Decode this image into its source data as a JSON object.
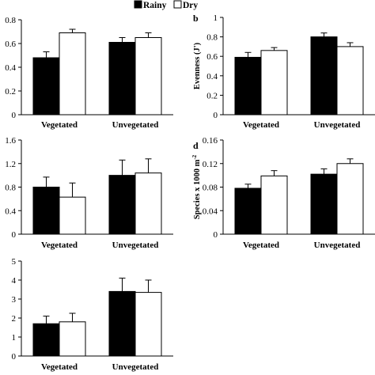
{
  "legend": {
    "placement": "top-center",
    "entries": [
      {
        "name": "Rainy",
        "color": "#000000"
      },
      {
        "name": "Dry",
        "color": "#ffffff"
      }
    ]
  },
  "chart_data": [
    {
      "type": "bar",
      "panel_label": "",
      "categories": [
        "Vegetated",
        "Unvegetated"
      ],
      "series": [
        {
          "name": "Rainy",
          "values": [
            0.48,
            0.61
          ],
          "errors": [
            0.05,
            0.04
          ]
        },
        {
          "name": "Dry",
          "values": [
            0.69,
            0.65
          ],
          "errors": [
            0.03,
            0.04
          ]
        }
      ],
      "ylabel": "",
      "ylim": [
        0,
        0.8
      ],
      "yticks": [
        "0",
        "0.2",
        "0.4",
        "0.6",
        "0.8"
      ]
    },
    {
      "type": "bar",
      "panel_label": "b",
      "categories": [
        "Vegetated",
        "Unvegetated"
      ],
      "series": [
        {
          "name": "Rainy",
          "values": [
            0.59,
            0.8
          ],
          "errors": [
            0.05,
            0.04
          ]
        },
        {
          "name": "Dry",
          "values": [
            0.66,
            0.7
          ],
          "errors": [
            0.03,
            0.04
          ]
        }
      ],
      "ylabel": "Evenness (J')",
      "ylim": [
        0,
        1
      ],
      "yticks": [
        "0",
        "0.2",
        "0.4",
        "0.6",
        "0.8",
        "1"
      ]
    },
    {
      "type": "bar",
      "panel_label": "",
      "categories": [
        "Vegetated",
        "Unvegetated"
      ],
      "series": [
        {
          "name": "Rainy",
          "values": [
            0.8,
            1.0
          ],
          "errors": [
            0.17,
            0.26
          ]
        },
        {
          "name": "Dry",
          "values": [
            0.63,
            1.04
          ],
          "errors": [
            0.24,
            0.24
          ]
        }
      ],
      "ylabel": "",
      "ylim": [
        0,
        1.6
      ],
      "yticks": [
        "0",
        "0.4",
        "0.8",
        "1.2",
        "1.6"
      ]
    },
    {
      "type": "bar",
      "panel_label": "d",
      "categories": [
        "Vegetated",
        "Unvegetated"
      ],
      "series": [
        {
          "name": "Rainy",
          "values": [
            0.078,
            0.102
          ],
          "errors": [
            0.007,
            0.009
          ]
        },
        {
          "name": "Dry",
          "values": [
            0.099,
            0.12
          ],
          "errors": [
            0.009,
            0.008
          ]
        }
      ],
      "ylabel": "Species x 1000 m",
      "ylabel_sup": "-2",
      "ylim": [
        0,
        0.16
      ],
      "yticks": [
        "0",
        "0.04",
        "0.08",
        "0.12",
        "0.16"
      ]
    },
    {
      "type": "bar",
      "panel_label": "",
      "categories": [
        "Vegetated",
        "Unvegetated"
      ],
      "series": [
        {
          "name": "Rainy",
          "values": [
            1.7,
            3.4
          ],
          "errors": [
            0.4,
            0.7
          ]
        },
        {
          "name": "Dry",
          "values": [
            1.8,
            3.35
          ],
          "errors": [
            0.45,
            0.65
          ]
        }
      ],
      "ylabel": "",
      "ylim": [
        0,
        5
      ],
      "yticks": [
        "0",
        "1",
        "2",
        "3",
        "4",
        "5"
      ]
    }
  ]
}
